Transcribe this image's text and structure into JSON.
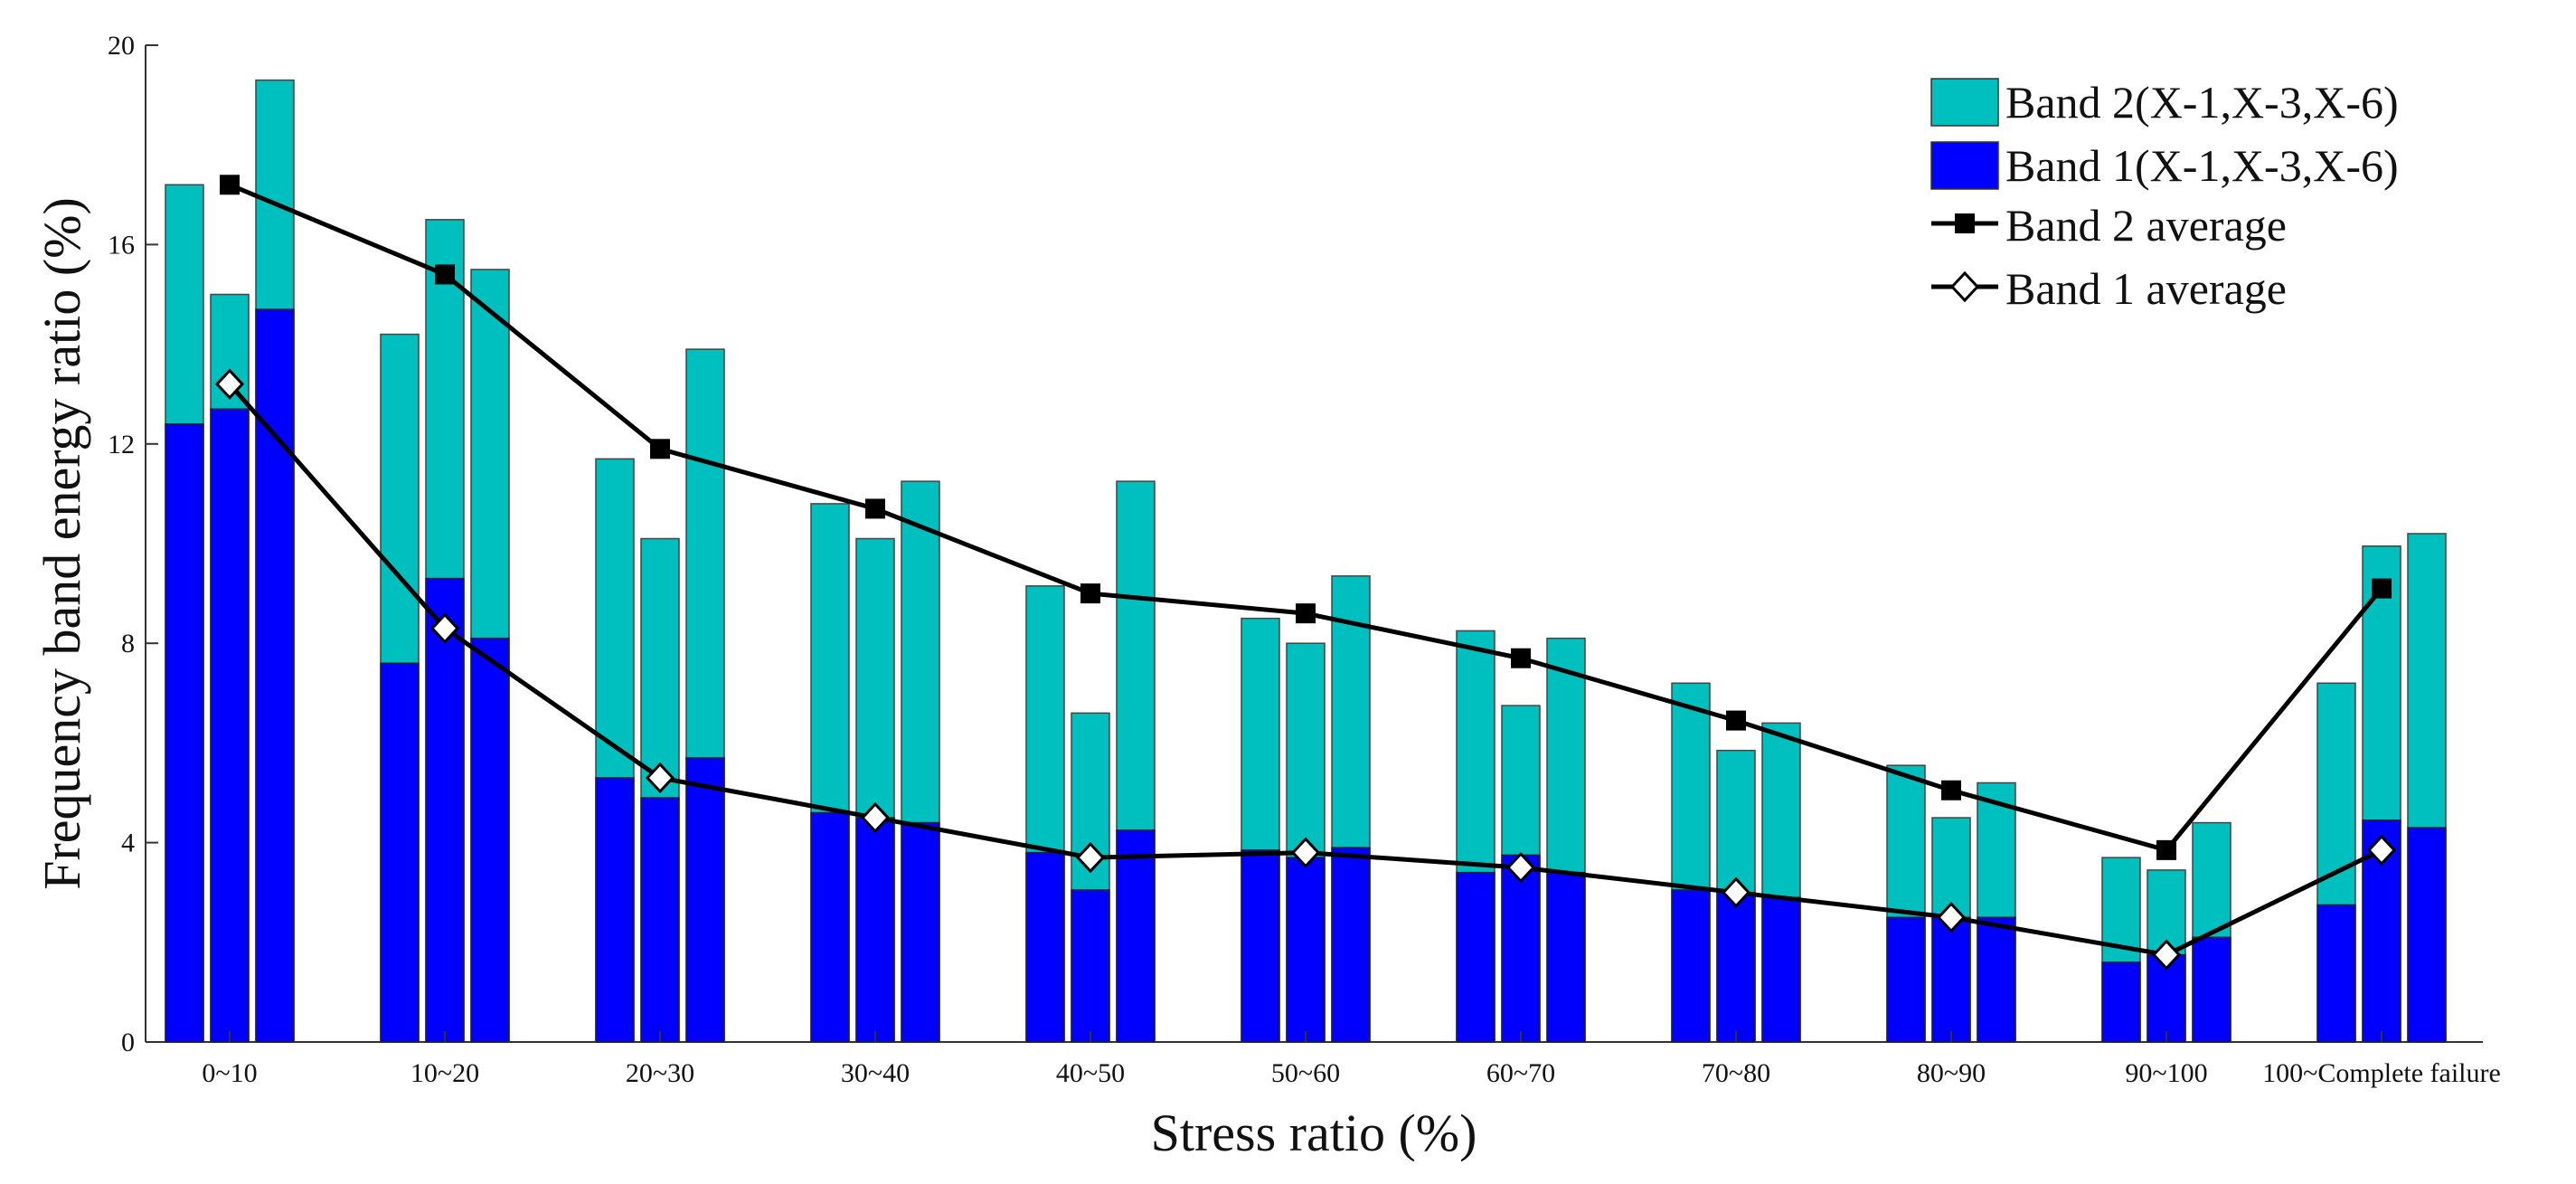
{
  "chart_data": {
    "type": "bar",
    "xlabel": "Stress ratio (%)",
    "ylabel": "Frequency band energy ratio (%)",
    "ylim": [
      0,
      20
    ],
    "yticks": [
      0,
      4,
      8,
      12,
      16,
      20
    ],
    "grid": false,
    "legend_position": "top-right",
    "categories": [
      "0~10",
      "10~20",
      "20~30",
      "30~40",
      "40~50",
      "50~60",
      "60~70",
      "70~80",
      "80~90",
      "90~100",
      "100~Complete failure"
    ],
    "samples": [
      "X-1",
      "X-3",
      "X-6"
    ],
    "series": [
      {
        "name": "Band 2(X-1,X-3,X-6)",
        "kind": "bar",
        "color": "#00BFBF",
        "values": [
          [
            17.2,
            15.0,
            19.3
          ],
          [
            14.2,
            16.5,
            15.5
          ],
          [
            11.7,
            10.1,
            13.9
          ],
          [
            10.8,
            10.1,
            11.25
          ],
          [
            9.15,
            6.6,
            11.25
          ],
          [
            8.5,
            8.0,
            9.35
          ],
          [
            8.25,
            6.75,
            8.1
          ],
          [
            7.2,
            5.85,
            6.4
          ],
          [
            5.55,
            4.5,
            5.2
          ],
          [
            3.7,
            3.45,
            4.4
          ],
          [
            7.2,
            9.95,
            10.2
          ]
        ]
      },
      {
        "name": "Band 1(X-1,X-3,X-6)",
        "kind": "bar",
        "color": "#0000FF",
        "values": [
          [
            12.4,
            12.7,
            14.7
          ],
          [
            7.6,
            9.3,
            8.1
          ],
          [
            5.3,
            4.9,
            5.7
          ],
          [
            4.6,
            4.5,
            4.4
          ],
          [
            3.8,
            3.05,
            4.25
          ],
          [
            3.85,
            3.7,
            3.9
          ],
          [
            3.4,
            3.75,
            3.4
          ],
          [
            3.05,
            3.0,
            2.9
          ],
          [
            2.5,
            2.5,
            2.5
          ],
          [
            1.6,
            1.75,
            2.1
          ],
          [
            2.75,
            4.45,
            4.3
          ]
        ]
      },
      {
        "name": "Band 2 average",
        "kind": "line",
        "marker": "square",
        "color": "#000000",
        "values": [
          17.2,
          15.4,
          11.9,
          10.7,
          9.0,
          8.6,
          7.7,
          6.45,
          5.05,
          3.85,
          9.1
        ]
      },
      {
        "name": "Band 1 average",
        "kind": "line",
        "marker": "diamond",
        "color": "#000000",
        "values": [
          13.2,
          8.3,
          5.3,
          4.5,
          3.7,
          3.8,
          3.5,
          3.0,
          2.5,
          1.75,
          3.85
        ]
      }
    ]
  }
}
